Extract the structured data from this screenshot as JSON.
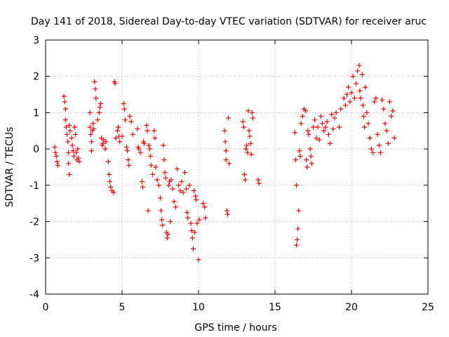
{
  "chart_data": {
    "type": "scatter",
    "title": "Day 141 of 2018, Sidereal Day-to-day VTEC variation (SDTVAR) for receiver aruc",
    "xlabel": "GPS time / hours",
    "ylabel": "SDTVAR / TECUs",
    "xlim": [
      0,
      25
    ],
    "ylim": [
      -4,
      3
    ],
    "x_ticks": [
      0,
      5,
      10,
      15,
      20,
      25
    ],
    "y_ticks": [
      -4,
      -3,
      -2,
      -1,
      0,
      1,
      2,
      3
    ],
    "x_tick_labels": [
      "0",
      "5",
      "10",
      "15",
      "20",
      "25"
    ],
    "y_tick_labels": [
      "-4",
      "-3",
      "-2",
      "-1",
      "0",
      "1",
      "2",
      "3"
    ],
    "grid": true,
    "marker": "+",
    "color": "#ff0000",
    "series": [
      {
        "name": "SDTVAR",
        "points": [
          [
            0.6,
            0.05
          ],
          [
            0.65,
            -0.1
          ],
          [
            0.7,
            -0.2
          ],
          [
            0.75,
            -0.35
          ],
          [
            0.8,
            -0.45
          ],
          [
            1.2,
            1.45
          ],
          [
            1.25,
            1.3
          ],
          [
            1.3,
            1.1
          ],
          [
            1.3,
            0.8
          ],
          [
            1.35,
            0.6
          ],
          [
            1.4,
            0.4
          ],
          [
            1.45,
            0.2
          ],
          [
            1.5,
            -0.1
          ],
          [
            1.5,
            -0.4
          ],
          [
            1.55,
            -0.7
          ],
          [
            1.55,
            0.65
          ],
          [
            1.6,
            0.5
          ],
          [
            1.7,
            0.3
          ],
          [
            1.75,
            0.1
          ],
          [
            1.8,
            -0.05
          ],
          [
            1.85,
            -0.2
          ],
          [
            1.9,
            0.6
          ],
          [
            1.95,
            0.4
          ],
          [
            2.0,
            -0.1
          ],
          [
            2.05,
            -0.3
          ],
          [
            2.1,
            0.0
          ],
          [
            2.15,
            -0.25
          ],
          [
            2.2,
            -0.35
          ],
          [
            2.9,
            1.0
          ],
          [
            2.9,
            0.6
          ],
          [
            2.95,
            0.4
          ],
          [
            3.0,
            0.2
          ],
          [
            3.0,
            -0.05
          ],
          [
            3.05,
            0.5
          ],
          [
            3.1,
            0.7
          ],
          [
            3.15,
            0.55
          ],
          [
            3.2,
            1.85
          ],
          [
            3.25,
            1.65
          ],
          [
            3.3,
            1.4
          ],
          [
            3.4,
            0.8
          ],
          [
            3.5,
            1.0
          ],
          [
            3.55,
            1.15
          ],
          [
            3.6,
            1.25
          ],
          [
            3.65,
            0.3
          ],
          [
            3.7,
            0.1
          ],
          [
            3.75,
            0.15
          ],
          [
            3.8,
            0.25
          ],
          [
            3.9,
            0.0
          ],
          [
            3.95,
            0.2
          ],
          [
            4.1,
            -0.35
          ],
          [
            4.15,
            -0.7
          ],
          [
            4.2,
            -0.9
          ],
          [
            4.25,
            -1.05
          ],
          [
            4.35,
            -1.15
          ],
          [
            4.45,
            -1.2
          ],
          [
            4.5,
            1.85
          ],
          [
            4.55,
            1.8
          ],
          [
            4.6,
            0.3
          ],
          [
            4.7,
            0.5
          ],
          [
            4.75,
            0.6
          ],
          [
            4.8,
            0.35
          ],
          [
            4.85,
            0.2
          ],
          [
            5.0,
            0.35
          ],
          [
            5.1,
            1.25
          ],
          [
            5.15,
            1.1
          ],
          [
            5.2,
            0.8
          ],
          [
            5.3,
            0.05
          ],
          [
            5.35,
            -0.05
          ],
          [
            5.4,
            -0.3
          ],
          [
            5.45,
            -0.45
          ],
          [
            5.5,
            0.9
          ],
          [
            5.6,
            0.75
          ],
          [
            5.7,
            0.4
          ],
          [
            6.0,
            0.55
          ],
          [
            6.05,
            0.05
          ],
          [
            6.1,
            0.0
          ],
          [
            6.2,
            -0.1
          ],
          [
            6.3,
            -0.9
          ],
          [
            6.35,
            -1.05
          ],
          [
            6.4,
            0.2
          ],
          [
            6.45,
            0.15
          ],
          [
            6.6,
            0.65
          ],
          [
            6.65,
            0.5
          ],
          [
            6.7,
            -1.7
          ],
          [
            6.75,
            0.1
          ],
          [
            6.8,
            0.0
          ],
          [
            6.85,
            -0.2
          ],
          [
            6.9,
            -0.45
          ],
          [
            7.0,
            -0.7
          ],
          [
            7.1,
            0.5
          ],
          [
            7.15,
            0.3
          ],
          [
            7.2,
            -0.5
          ],
          [
            7.3,
            -0.85
          ],
          [
            7.4,
            -1.0
          ],
          [
            7.5,
            -1.35
          ],
          [
            7.55,
            -1.7
          ],
          [
            7.6,
            -1.95
          ],
          [
            7.65,
            -2.1
          ],
          [
            7.7,
            0.1
          ],
          [
            7.75,
            -0.3
          ],
          [
            7.8,
            -0.65
          ],
          [
            7.85,
            -0.8
          ],
          [
            7.9,
            -2.3
          ],
          [
            7.95,
            -2.45
          ],
          [
            8.0,
            -2.35
          ],
          [
            8.05,
            -1.0
          ],
          [
            8.1,
            -0.9
          ],
          [
            8.15,
            -2.0
          ],
          [
            8.2,
            -0.85
          ],
          [
            8.3,
            -1.1
          ],
          [
            8.4,
            -1.45
          ],
          [
            8.5,
            -1.6
          ],
          [
            8.6,
            -0.55
          ],
          [
            8.7,
            -1.0
          ],
          [
            8.8,
            -1.15
          ],
          [
            8.9,
            -0.9
          ],
          [
            9.0,
            -1.2
          ],
          [
            9.1,
            -0.65
          ],
          [
            9.2,
            -1.1
          ],
          [
            9.25,
            -1.75
          ],
          [
            9.3,
            -1.9
          ],
          [
            9.4,
            -1.0
          ],
          [
            9.5,
            -2.05
          ],
          [
            9.55,
            -2.25
          ],
          [
            9.6,
            -2.45
          ],
          [
            9.65,
            -2.75
          ],
          [
            9.7,
            -1.15
          ],
          [
            9.75,
            -2.3
          ],
          [
            9.8,
            -1.3
          ],
          [
            9.85,
            -1.4
          ],
          [
            9.9,
            -2.05
          ],
          [
            10.0,
            -3.05
          ],
          [
            10.05,
            -1.95
          ],
          [
            10.3,
            -1.5
          ],
          [
            10.4,
            -1.6
          ],
          [
            10.45,
            -1.9
          ],
          [
            11.7,
            0.5
          ],
          [
            11.75,
            0.2
          ],
          [
            11.8,
            -0.3
          ],
          [
            11.8,
            -0.05
          ],
          [
            11.85,
            -1.7
          ],
          [
            11.9,
            -1.8
          ],
          [
            11.95,
            0.85
          ],
          [
            12.0,
            -0.4
          ],
          [
            12.9,
            0.75
          ],
          [
            12.95,
            0.6
          ],
          [
            13.0,
            -0.7
          ],
          [
            13.05,
            -0.85
          ],
          [
            13.1,
            0.0
          ],
          [
            13.15,
            0.1
          ],
          [
            13.2,
            -0.1
          ],
          [
            13.25,
            1.05
          ],
          [
            13.3,
            0.5
          ],
          [
            13.35,
            0.35
          ],
          [
            13.4,
            0.15
          ],
          [
            13.45,
            -0.15
          ],
          [
            13.5,
            1.0
          ],
          [
            13.55,
            0.85
          ],
          [
            13.9,
            -0.85
          ],
          [
            13.95,
            -0.95
          ],
          [
            16.3,
            0.45
          ],
          [
            16.35,
            -0.3
          ],
          [
            16.4,
            -2.65
          ],
          [
            16.4,
            -1.0
          ],
          [
            16.45,
            -2.5
          ],
          [
            16.5,
            -2.2
          ],
          [
            16.55,
            -1.7
          ],
          [
            16.6,
            -0.05
          ],
          [
            16.65,
            -0.2
          ],
          [
            16.7,
            0.7
          ],
          [
            16.8,
            0.9
          ],
          [
            16.9,
            1.1
          ],
          [
            17.0,
            1.05
          ],
          [
            17.05,
            -0.3
          ],
          [
            17.1,
            -0.5
          ],
          [
            17.15,
            0.5
          ],
          [
            17.2,
            0.4
          ],
          [
            17.3,
            0.0
          ],
          [
            17.35,
            -0.2
          ],
          [
            17.4,
            -0.4
          ],
          [
            17.5,
            0.6
          ],
          [
            17.6,
            0.8
          ],
          [
            17.7,
            0.3
          ],
          [
            17.8,
            0.6
          ],
          [
            17.9,
            0.25
          ],
          [
            18.0,
            0.9
          ],
          [
            18.1,
            0.7
          ],
          [
            18.2,
            0.5
          ],
          [
            18.3,
            0.6
          ],
          [
            18.4,
            0.75
          ],
          [
            18.5,
            0.4
          ],
          [
            18.6,
            0.15
          ],
          [
            18.7,
            0.95
          ],
          [
            18.8,
            0.55
          ],
          [
            18.9,
            0.85
          ],
          [
            19.0,
            1.0
          ],
          [
            19.2,
            0.6
          ],
          [
            19.3,
            1.1
          ],
          [
            19.5,
            1.4
          ],
          [
            19.6,
            1.2
          ],
          [
            19.7,
            1.5
          ],
          [
            19.8,
            1.7
          ],
          [
            19.9,
            1.3
          ],
          [
            20.0,
            1.55
          ],
          [
            20.1,
            2.0
          ],
          [
            20.2,
            1.4
          ],
          [
            20.3,
            1.8
          ],
          [
            20.4,
            2.15
          ],
          [
            20.5,
            2.3
          ],
          [
            20.55,
            1.6
          ],
          [
            20.6,
            1.4
          ],
          [
            20.7,
            2.05
          ],
          [
            20.75,
            1.2
          ],
          [
            20.8,
            0.9
          ],
          [
            20.85,
            0.6
          ],
          [
            20.9,
            1.7
          ],
          [
            21.0,
            1.0
          ],
          [
            21.1,
            0.7
          ],
          [
            21.2,
            0.3
          ],
          [
            21.3,
            0.0
          ],
          [
            21.4,
            -0.1
          ],
          [
            21.5,
            1.3
          ],
          [
            21.6,
            1.4
          ],
          [
            21.7,
            0.4
          ],
          [
            21.8,
            0.1
          ],
          [
            21.9,
            -0.1
          ],
          [
            22.0,
            1.35
          ],
          [
            22.1,
            1.1
          ],
          [
            22.2,
            0.7
          ],
          [
            22.3,
            0.5
          ],
          [
            22.4,
            0.15
          ],
          [
            22.5,
            1.3
          ],
          [
            22.6,
            0.9
          ],
          [
            22.7,
            1.05
          ],
          [
            22.8,
            0.3
          ]
        ]
      }
    ]
  }
}
